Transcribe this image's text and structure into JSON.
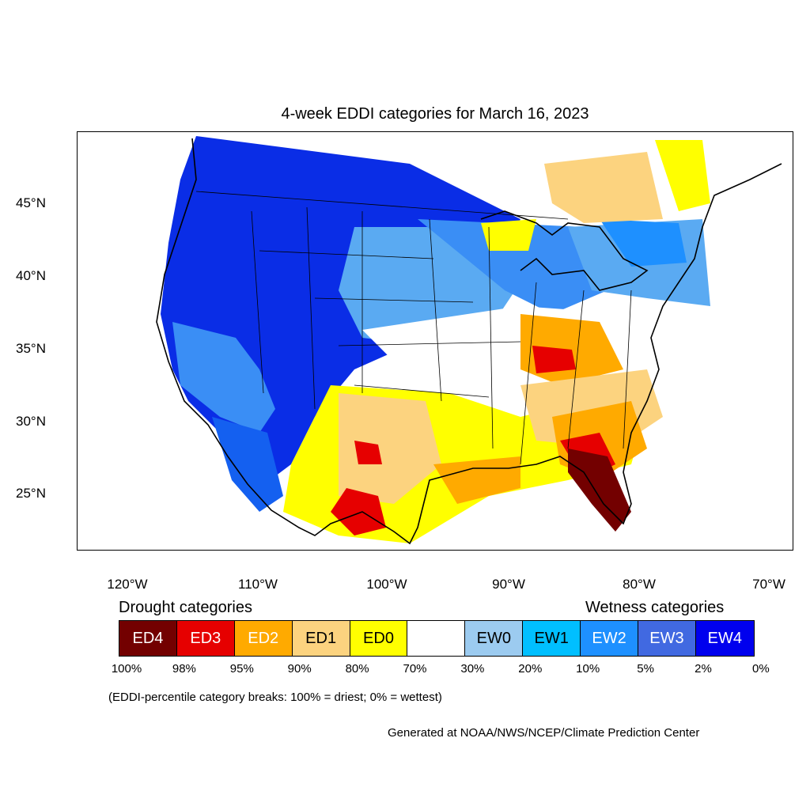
{
  "title": "4-week EDDI categories for March 16, 2023",
  "lat_labels": [
    "45°N",
    "40°N",
    "35°N",
    "30°N",
    "25°N"
  ],
  "lon_labels": [
    "120°W",
    "110°W",
    "100°W",
    "90°W",
    "80°W",
    "70°W"
  ],
  "legend": {
    "drought_heading": "Drought categories",
    "wetness_heading": "Wetness categories",
    "categories": [
      {
        "label": "ED4",
        "color": "#730000"
      },
      {
        "label": "ED3",
        "color": "#e60000"
      },
      {
        "label": "ED2",
        "color": "#ffaa00"
      },
      {
        "label": "ED1",
        "color": "#fcd37f"
      },
      {
        "label": "ED0",
        "color": "#ffff00"
      },
      {
        "label": "",
        "color": "#ffffff"
      },
      {
        "label": "EW0",
        "color": "#9ccbf0"
      },
      {
        "label": "EW1",
        "color": "#00bfff"
      },
      {
        "label": "EW2",
        "color": "#1e90ff"
      },
      {
        "label": "EW3",
        "color": "#4169e1"
      },
      {
        "label": "EW4",
        "color": "#0000ee"
      }
    ],
    "percentiles": [
      "100%",
      "98%",
      "95%",
      "90%",
      "80%",
      "70%",
      "30%",
      "20%",
      "10%",
      "5%",
      "2%",
      "0%"
    ]
  },
  "note": "(EDDI-percentile category breaks: 100% = driest; 0% = wettest)",
  "credit": "Generated at NOAA/NWS/NCEP/Climate Prediction Center"
}
